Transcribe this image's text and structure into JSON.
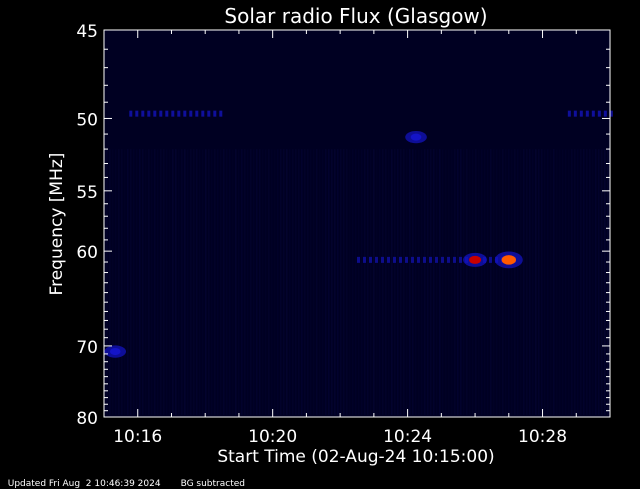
{
  "chart_data": {
    "type": "heatmap",
    "title": "Solar radio Flux (Glasgow)",
    "ylabel": "Frequency [MHz]",
    "xlabel": "Start Time (02-Aug-24 10:15:00)",
    "xlim": [
      "10:15:00",
      "10:30:00"
    ],
    "ylim": [
      45,
      80
    ],
    "y_scale": "reciprocal",
    "y_ticks": [
      45,
      50,
      55,
      60,
      70,
      80
    ],
    "x_ticks": [
      "10:16",
      "10:20",
      "10:24",
      "10:28"
    ],
    "colormap": [
      "#000022",
      "#0a0a50",
      "#1414c8",
      "#c80000",
      "#ff5a00"
    ],
    "features": [
      {
        "kind": "band",
        "freq_mhz": 49.7,
        "t_start": "10:15:45",
        "t_end": "10:18:30",
        "intensity": 0.55
      },
      {
        "kind": "band",
        "freq_mhz": 49.7,
        "t_start": "10:28:45",
        "t_end": "10:30:00",
        "intensity": 0.55
      },
      {
        "kind": "band",
        "freq_mhz": 60.8,
        "t_start": "10:22:30",
        "t_end": "10:27:15",
        "intensity": 0.35
      },
      {
        "kind": "spot",
        "freq_mhz": 60.8,
        "time": "10:26:00",
        "intensity": 0.75
      },
      {
        "kind": "spot",
        "freq_mhz": 60.8,
        "time": "10:27:00",
        "intensity": 1.0
      },
      {
        "kind": "spot",
        "freq_mhz": 51.2,
        "time": "10:24:15",
        "intensity": 0.6
      },
      {
        "kind": "spot",
        "freq_mhz": 70.7,
        "time": "10:15:20",
        "intensity": 0.6
      }
    ]
  },
  "footer": {
    "updated": "Updated Fri Aug  2 10:46:39 2024",
    "note": "BG subtracted"
  }
}
